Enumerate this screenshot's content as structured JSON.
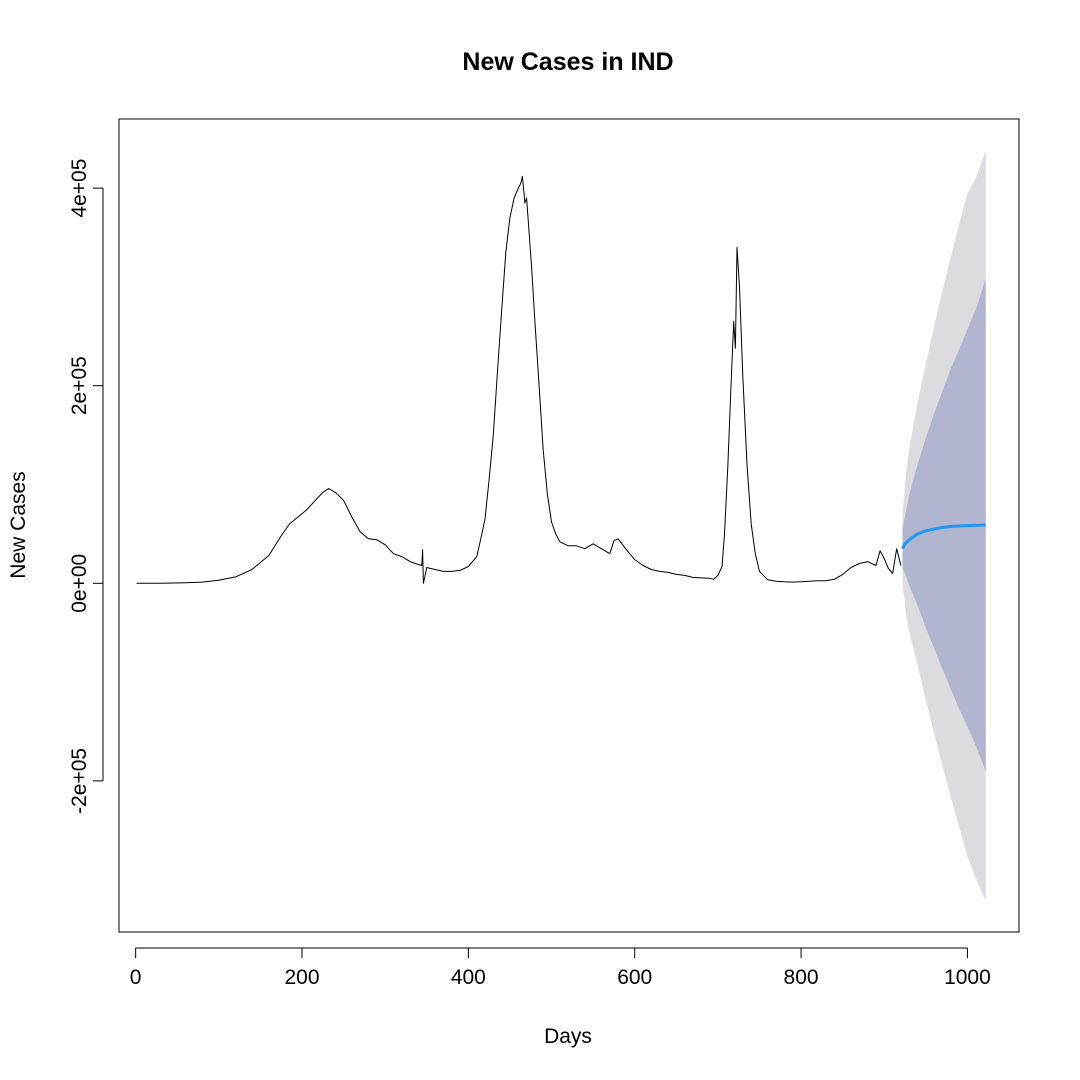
{
  "chart_data": {
    "type": "line",
    "title": "New Cases in IND",
    "xlabel": "Days",
    "ylabel": "New Cases",
    "xlim": [
      -20,
      1062
    ],
    "ylim": [
      -353000,
      470000
    ],
    "x_ticks": [
      0,
      200,
      400,
      600,
      800,
      1000
    ],
    "x_tick_labels": [
      "0",
      "200",
      "400",
      "600",
      "800",
      "1000"
    ],
    "y_ticks": [
      -200000,
      0,
      200000,
      400000
    ],
    "y_tick_labels": [
      "-2e+05",
      "0e+00",
      "2e+05",
      "4e+05"
    ],
    "grid": false,
    "legend": "none",
    "colors": {
      "observed": "#000000",
      "forecast": "#2196F3",
      "band80": "#B1B5D0",
      "band95": "#DBDBE0"
    },
    "series": [
      {
        "role": "observed",
        "x": [
          1,
          30,
          60,
          80,
          100,
          120,
          140,
          160,
          175,
          185,
          195,
          205,
          215,
          225,
          232,
          240,
          250,
          260,
          270,
          280,
          290,
          300,
          310,
          320,
          330,
          340,
          344,
          345,
          346,
          350,
          360,
          370,
          380,
          390,
          400,
          410,
          415,
          420,
          425,
          430,
          435,
          440,
          445,
          450,
          455,
          460,
          463,
          465,
          468,
          470,
          473,
          476,
          480,
          485,
          490,
          495,
          500,
          505,
          510,
          520,
          530,
          540,
          550,
          560,
          570,
          575,
          580,
          590,
          600,
          610,
          620,
          630,
          640,
          650,
          660,
          670,
          680,
          690,
          695,
          700,
          705,
          708,
          712,
          716,
          719,
          721,
          723,
          726,
          730,
          735,
          740,
          745,
          750,
          760,
          770,
          780,
          790,
          800,
          810,
          820,
          830,
          840,
          850,
          860,
          870,
          880,
          890,
          895,
          900,
          905,
          910,
          915,
          920
        ],
        "y": [
          0,
          0,
          500,
          1200,
          3000,
          6500,
          14000,
          28000,
          48000,
          60000,
          67000,
          74000,
          83000,
          92000,
          96000,
          92000,
          84000,
          67000,
          52000,
          45000,
          44000,
          39000,
          30000,
          27000,
          22000,
          19000,
          18000,
          34000,
          0,
          16000,
          14000,
          12000,
          12000,
          13000,
          17000,
          27000,
          45000,
          65000,
          105000,
          150000,
          215000,
          275000,
          335000,
          370000,
          390000,
          400000,
          405000,
          412000,
          385000,
          390000,
          355000,
          320000,
          265000,
          200000,
          135000,
          90000,
          62000,
          50000,
          42000,
          38000,
          38000,
          35000,
          40000,
          35000,
          30000,
          43000,
          45000,
          34000,
          24000,
          18000,
          14000,
          12000,
          11000,
          9000,
          8000,
          6000,
          5500,
          5000,
          4000,
          8000,
          17000,
          50000,
          120000,
          205000,
          265000,
          238000,
          340000,
          300000,
          210000,
          120000,
          60000,
          30000,
          12000,
          3500,
          2000,
          1500,
          1200,
          1500,
          2000,
          2500,
          2500,
          4000,
          9000,
          16000,
          20000,
          22000,
          18000,
          33000,
          25000,
          15000,
          10000,
          35000,
          18000
        ]
      },
      {
        "role": "forecast",
        "x": [
          922,
          925,
          930,
          935,
          940,
          950,
          960,
          970,
          980,
          1000,
          1022
        ],
        "y": [
          35000,
          40000,
          44000,
          47000,
          50000,
          53000,
          55000,
          56500,
          57500,
          58500,
          59000
        ]
      },
      {
        "role": "band80",
        "x": [
          922,
          926,
          930,
          940,
          950,
          960,
          970,
          980,
          990,
          1000,
          1010,
          1022
        ],
        "upper": [
          55000,
          72000,
          90000,
          120000,
          147000,
          172000,
          195000,
          217000,
          237000,
          257000,
          277000,
          308000
        ],
        "lower": [
          15000,
          8000,
          -2000,
          -22000,
          -45000,
          -66000,
          -87000,
          -107000,
          -127000,
          -145000,
          -164000,
          -190000
        ]
      },
      {
        "role": "band95",
        "x": [
          922,
          926,
          930,
          940,
          950,
          960,
          970,
          980,
          990,
          1000,
          1010,
          1022
        ],
        "upper": [
          70000,
          110000,
          136000,
          182000,
          222000,
          260000,
          296000,
          330000,
          363000,
          394000,
          410000,
          438000
        ],
        "lower": [
          0,
          -30000,
          -48000,
          -82000,
          -118000,
          -152000,
          -185000,
          -216000,
          -246000,
          -276000,
          -298000,
          -322000
        ]
      }
    ]
  }
}
